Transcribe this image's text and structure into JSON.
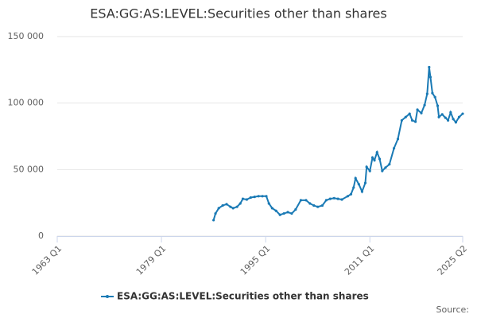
{
  "chart_data": {
    "type": "line",
    "title": "ESA:GG:AS:LEVEL:Securities other than shares",
    "source": "Source:",
    "x": [
      1987.0,
      1987.3,
      1987.8,
      1988.4,
      1989.0,
      1989.6,
      1990.0,
      1990.6,
      1991.1,
      1991.5,
      1992.1,
      1992.7,
      1993.3,
      1993.9,
      1994.5,
      1995.1,
      1995.5,
      1996.0,
      1996.6,
      1997.2,
      1997.8,
      1998.4,
      1999.0,
      1999.6,
      2000.4,
      2001.2,
      2001.8,
      2002.4,
      2003.0,
      2003.7,
      2004.3,
      2004.9,
      2005.5,
      2006.1,
      2006.7,
      2007.6,
      2008.1,
      2008.5,
      2008.8,
      2009.3,
      2009.8,
      2010.3,
      2010.5,
      2011.0,
      2011.4,
      2011.7,
      2012.1,
      2012.5,
      2012.9,
      2013.4,
      2014.0,
      2014.7,
      2015.3,
      2015.9,
      2016.5,
      2017.1,
      2017.5,
      2018.0,
      2018.3,
      2018.9,
      2019.4,
      2019.8,
      2020.1,
      2020.3,
      2020.6,
      2021.0,
      2021.4,
      2021.6,
      2022.1,
      2022.6,
      2023.0,
      2023.4,
      2023.8,
      2024.2,
      2024.7,
      2025.25
    ],
    "series": [
      {
        "name": "ESA:GG:AS:LEVEL:Securities other than shares",
        "color": "#1a7ab5",
        "values": [
          12000,
          17000,
          21000,
          23000,
          24000,
          22000,
          21000,
          22000,
          24500,
          28000,
          27500,
          29000,
          29500,
          30000,
          30000,
          30000,
          24500,
          21000,
          19000,
          16000,
          17000,
          18000,
          17000,
          20000,
          27000,
          27000,
          24500,
          23000,
          22000,
          23000,
          27000,
          28000,
          28500,
          28000,
          27500,
          30000,
          31500,
          36500,
          43500,
          39000,
          33500,
          40000,
          52000,
          49000,
          59000,
          57000,
          63000,
          58000,
          49000,
          51500,
          54000,
          66000,
          73000,
          87000,
          89500,
          92000,
          87000,
          86000,
          95000,
          92500,
          98500,
          107000,
          127000,
          119500,
          107500,
          104500,
          98000,
          89500,
          91500,
          89000,
          87000,
          93000,
          88000,
          85500,
          89500,
          92000
        ]
      }
    ],
    "xlim": [
      1963,
      2025.25
    ],
    "xticks": [
      {
        "value": 1963,
        "label": "1963 Q1"
      },
      {
        "value": 1979,
        "label": "1979 Q1"
      },
      {
        "value": 1995,
        "label": "1995 Q1"
      },
      {
        "value": 2011,
        "label": "2011 Q1"
      },
      {
        "value": 2025.25,
        "label": "2025 Q2"
      }
    ],
    "ylim": [
      0,
      150000
    ],
    "yticks": [
      {
        "value": 0,
        "label": "0"
      },
      {
        "value": 50000,
        "label": "50 000"
      },
      {
        "value": 100000,
        "label": "100 000"
      },
      {
        "value": 150000,
        "label": "150 000"
      }
    ],
    "grid": true
  }
}
